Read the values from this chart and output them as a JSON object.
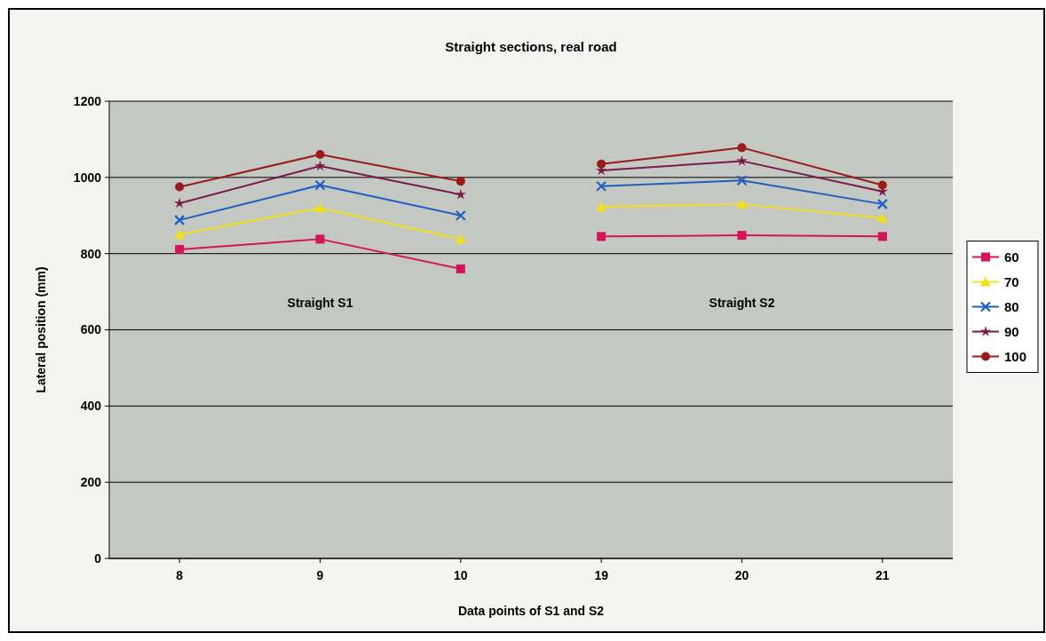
{
  "chart_data": {
    "type": "line",
    "title": "Straight sections, real road",
    "xlabel": "Data points of S1 and S2",
    "ylabel": "Lateral position (mm)",
    "categories": [
      "8",
      "9",
      "10",
      "19",
      "20",
      "21"
    ],
    "series": [
      {
        "name": "60",
        "color": "#d4145a",
        "values": [
          811,
          838,
          760,
          null,
          null,
          null
        ],
        "marker": "square"
      },
      {
        "name": "70",
        "color": "#f0e020",
        "values": [
          850,
          920,
          838,
          null,
          null,
          null
        ],
        "marker": "triangle"
      },
      {
        "name": "80",
        "color": "#1f5fc0",
        "values": [
          888,
          980,
          900,
          null,
          null,
          null
        ],
        "marker": "cross"
      },
      {
        "name": "90",
        "color": "#7a1a4a",
        "values": [
          932,
          1030,
          955,
          null,
          null,
          null
        ],
        "marker": "star"
      },
      {
        "name": "100",
        "color": "#9a1a1a",
        "values": [
          975,
          1060,
          990,
          null,
          null,
          null
        ],
        "marker": "circle"
      },
      {
        "color": "#d4145a",
        "values": [
          null,
          null,
          null,
          845,
          848,
          845
        ],
        "marker": "square"
      },
      {
        "color": "#f0e020",
        "values": [
          null,
          null,
          null,
          923,
          930,
          893
        ],
        "marker": "triangle"
      },
      {
        "color": "#1f5fc0",
        "values": [
          null,
          null,
          null,
          977,
          992,
          930
        ],
        "marker": "cross"
      },
      {
        "color": "#7a1a4a",
        "values": [
          null,
          null,
          null,
          1018,
          1043,
          963
        ],
        "marker": "star"
      },
      {
        "color": "#9a1a1a",
        "values": [
          null,
          null,
          null,
          1035,
          1078,
          980
        ],
        "marker": "circle"
      }
    ],
    "ylim": [
      0,
      1200
    ],
    "yticks": [
      0,
      200,
      400,
      600,
      800,
      1000,
      1200
    ],
    "grid": "y",
    "legend": "right",
    "annotations": [
      "Straight S1",
      "Straight S2"
    ]
  }
}
